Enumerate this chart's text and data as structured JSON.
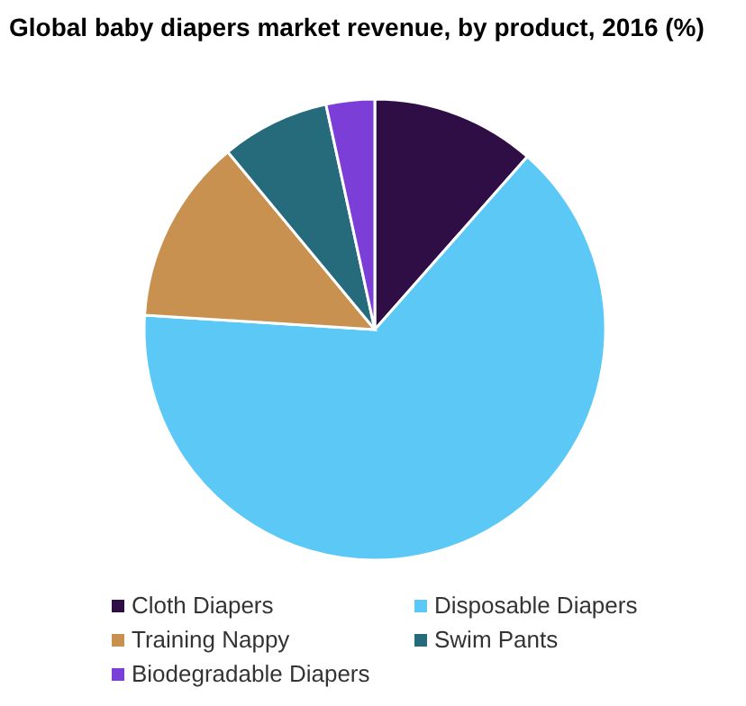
{
  "chart_data": {
    "type": "pie",
    "title": "Global baby diapers market revenue, by product, 2016 (%)",
    "categories": [
      "Cloth Diapers",
      "Disposable Diapers",
      "Training Nappy",
      "Swim Pants",
      "Biodegradable Diapers"
    ],
    "values": [
      11.5,
      64.5,
      13,
      7.6,
      3.4
    ],
    "colors": [
      "#2f0e45",
      "#5bc8f5",
      "#c9914f",
      "#256b7b",
      "#7b3fd8"
    ],
    "legend": "bottom"
  }
}
